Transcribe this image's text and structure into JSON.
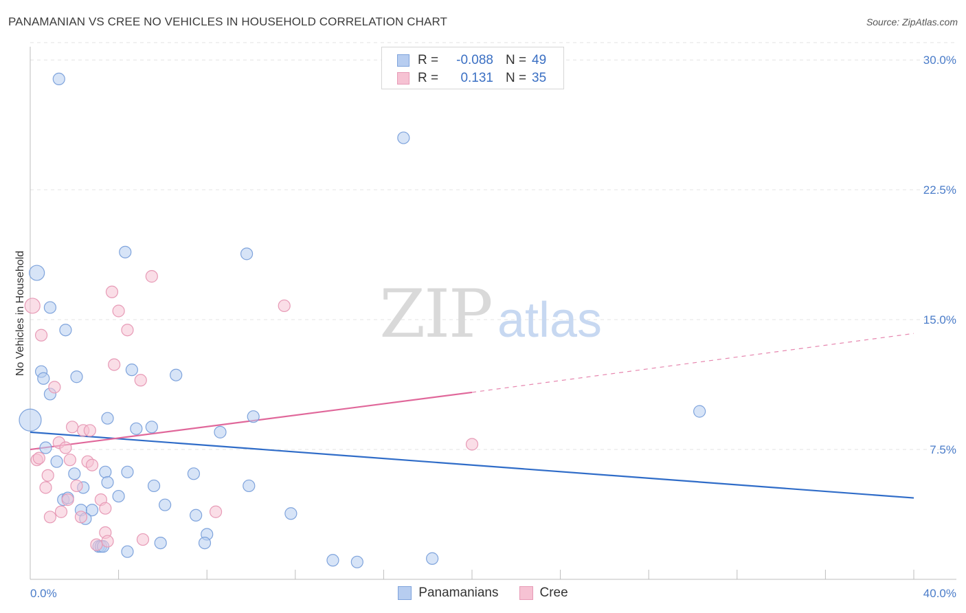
{
  "header": {
    "title": "PANAMANIAN VS CREE NO VEHICLES IN HOUSEHOLD CORRELATION CHART",
    "source": "Source: ZipAtlas.com"
  },
  "watermark": {
    "zip": "ZIP",
    "atlas": "atlas"
  },
  "legend_top": {
    "rows": [
      {
        "r_label": "R =",
        "r_value": "-0.088",
        "n_label": "N =",
        "n_value": "49"
      },
      {
        "r_label": "R =",
        "r_value": "0.131",
        "n_label": "N =",
        "n_value": "35"
      }
    ]
  },
  "legend_bottom": {
    "items": [
      {
        "label": "Panamanians"
      },
      {
        "label": "Cree"
      }
    ]
  },
  "colors": {
    "blue_fill": "#b7cdf0",
    "blue_stroke": "#7ea3dc",
    "blue_line": "#2f6cc8",
    "pink_fill": "#f6c2d3",
    "pink_stroke": "#e79ab6",
    "pink_line": "#e0679a",
    "grid": "#e3e3e3",
    "tick_text": "#4a7cc9"
  },
  "chart_data": {
    "type": "scatter",
    "title": "PANAMANIAN VS CREE NO VEHICLES IN HOUSEHOLD CORRELATION CHART",
    "xlabel": "",
    "ylabel": "No Vehicles in Household",
    "xlim": [
      0,
      40
    ],
    "ylim": [
      0,
      31
    ],
    "x_tick_labels": [
      "0.0%",
      "40.0%"
    ],
    "y_ticks": [
      7.5,
      15.0,
      22.5,
      30.0
    ],
    "y_tick_labels": [
      "7.5%",
      "15.0%",
      "22.5%",
      "30.0%"
    ],
    "series": [
      {
        "name": "Panamanians",
        "r": -0.088,
        "n": 49,
        "trend": {
          "x0": 0,
          "y0": 8.5,
          "x1": 40,
          "y1": 4.7
        },
        "points": [
          [
            0.3,
            17.7
          ],
          [
            1.3,
            28.9
          ],
          [
            16.9,
            25.5
          ],
          [
            0.9,
            15.7
          ],
          [
            1.6,
            14.4
          ],
          [
            0.5,
            12.0
          ],
          [
            0.6,
            11.6
          ],
          [
            2.1,
            11.7
          ],
          [
            4.3,
            18.9
          ],
          [
            9.8,
            18.8
          ],
          [
            0.9,
            10.7
          ],
          [
            4.6,
            12.1
          ],
          [
            6.6,
            11.8
          ],
          [
            0.0,
            9.2
          ],
          [
            3.5,
            9.3
          ],
          [
            4.8,
            8.7
          ],
          [
            5.5,
            8.8
          ],
          [
            8.6,
            8.5
          ],
          [
            10.1,
            9.4
          ],
          [
            30.3,
            9.7
          ],
          [
            0.7,
            7.6
          ],
          [
            1.2,
            6.8
          ],
          [
            2.0,
            6.1
          ],
          [
            3.4,
            6.2
          ],
          [
            4.4,
            6.2
          ],
          [
            7.4,
            6.1
          ],
          [
            3.5,
            5.6
          ],
          [
            2.4,
            5.3
          ],
          [
            5.6,
            5.4
          ],
          [
            9.9,
            5.4
          ],
          [
            1.5,
            4.6
          ],
          [
            1.7,
            4.7
          ],
          [
            4.0,
            4.8
          ],
          [
            6.1,
            4.3
          ],
          [
            2.3,
            4.0
          ],
          [
            2.8,
            4.0
          ],
          [
            2.5,
            3.5
          ],
          [
            7.5,
            3.7
          ],
          [
            11.8,
            3.8
          ],
          [
            8.0,
            2.6
          ],
          [
            7.9,
            2.1
          ],
          [
            3.1,
            1.9
          ],
          [
            3.2,
            1.9
          ],
          [
            4.4,
            1.6
          ],
          [
            5.9,
            2.1
          ],
          [
            13.7,
            1.1
          ],
          [
            14.8,
            1.0
          ],
          [
            18.2,
            1.2
          ],
          [
            3.3,
            1.9
          ]
        ]
      },
      {
        "name": "Cree",
        "r": 0.131,
        "n": 35,
        "trend": {
          "x0": 0,
          "y0": 7.5,
          "x1": 20,
          "y1": 10.8,
          "dash_x1": 40,
          "dash_y1": 14.2
        },
        "points": [
          [
            0.1,
            15.8
          ],
          [
            5.5,
            17.5
          ],
          [
            3.7,
            16.6
          ],
          [
            4.0,
            15.5
          ],
          [
            4.4,
            14.4
          ],
          [
            11.5,
            15.8
          ],
          [
            0.5,
            14.1
          ],
          [
            1.1,
            11.1
          ],
          [
            3.8,
            12.4
          ],
          [
            5.0,
            11.5
          ],
          [
            1.9,
            8.8
          ],
          [
            2.4,
            8.6
          ],
          [
            2.7,
            8.6
          ],
          [
            1.3,
            7.9
          ],
          [
            1.6,
            7.6
          ],
          [
            0.3,
            6.9
          ],
          [
            0.4,
            7.0
          ],
          [
            1.8,
            6.9
          ],
          [
            2.6,
            6.8
          ],
          [
            2.8,
            6.6
          ],
          [
            0.8,
            6.0
          ],
          [
            0.7,
            5.3
          ],
          [
            2.1,
            5.4
          ],
          [
            3.2,
            4.6
          ],
          [
            1.7,
            4.6
          ],
          [
            3.4,
            4.1
          ],
          [
            1.4,
            3.9
          ],
          [
            0.9,
            3.6
          ],
          [
            2.3,
            3.6
          ],
          [
            8.4,
            3.9
          ],
          [
            3.4,
            2.7
          ],
          [
            3.5,
            2.2
          ],
          [
            3.0,
            2.0
          ],
          [
            5.1,
            2.3
          ],
          [
            20.0,
            7.8
          ]
        ]
      }
    ]
  }
}
